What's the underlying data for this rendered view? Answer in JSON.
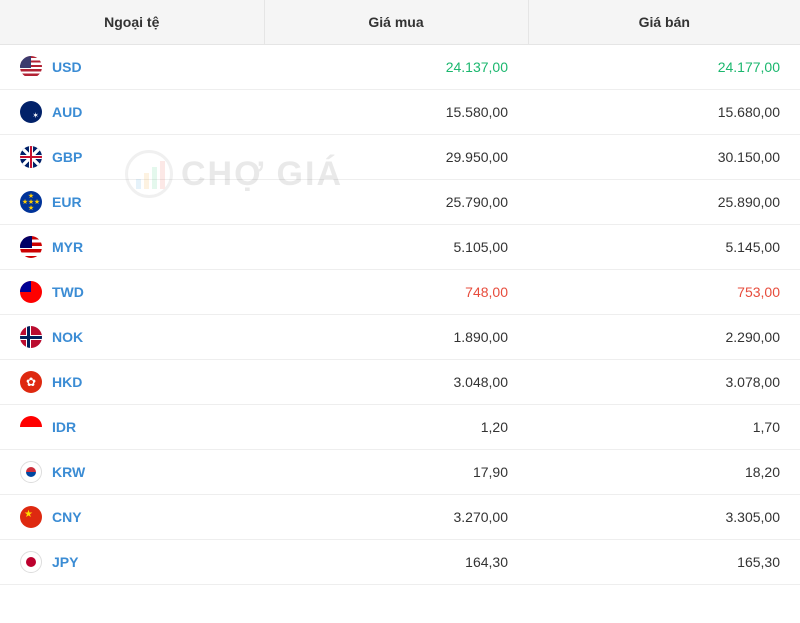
{
  "headers": {
    "currency": "Ngoại tệ",
    "buy": "Giá mua",
    "sell": "Giá bán"
  },
  "watermark": {
    "text": "CHỢ GIÁ"
  },
  "colors": {
    "link": "#3b8cd4",
    "up": "#1bb76e",
    "down": "#e74c3c",
    "text": "#333333",
    "border": "#eeeeee",
    "header_bg": "#f5f5f5"
  },
  "rows": [
    {
      "code": "USD",
      "flag": "flag-usd",
      "buy": "24.137,00",
      "sell": "24.177,00",
      "color": "green"
    },
    {
      "code": "AUD",
      "flag": "flag-aud",
      "buy": "15.580,00",
      "sell": "15.680,00",
      "color": "normal"
    },
    {
      "code": "GBP",
      "flag": "flag-gbp",
      "buy": "29.950,00",
      "sell": "30.150,00",
      "color": "normal"
    },
    {
      "code": "EUR",
      "flag": "flag-eur",
      "buy": "25.790,00",
      "sell": "25.890,00",
      "color": "normal"
    },
    {
      "code": "MYR",
      "flag": "flag-myr",
      "buy": "5.105,00",
      "sell": "5.145,00",
      "color": "normal"
    },
    {
      "code": "TWD",
      "flag": "flag-twd",
      "buy": "748,00",
      "sell": "753,00",
      "color": "red"
    },
    {
      "code": "NOK",
      "flag": "flag-nok",
      "buy": "1.890,00",
      "sell": "2.290,00",
      "color": "normal"
    },
    {
      "code": "HKD",
      "flag": "flag-hkd",
      "buy": "3.048,00",
      "sell": "3.078,00",
      "color": "normal"
    },
    {
      "code": "IDR",
      "flag": "flag-idr",
      "buy": "1,20",
      "sell": "1,70",
      "color": "normal"
    },
    {
      "code": "KRW",
      "flag": "flag-krw",
      "buy": "17,90",
      "sell": "18,20",
      "color": "normal"
    },
    {
      "code": "CNY",
      "flag": "flag-cny",
      "buy": "3.270,00",
      "sell": "3.305,00",
      "color": "normal"
    },
    {
      "code": "JPY",
      "flag": "flag-jpy",
      "buy": "164,30",
      "sell": "165,30",
      "color": "normal"
    }
  ]
}
